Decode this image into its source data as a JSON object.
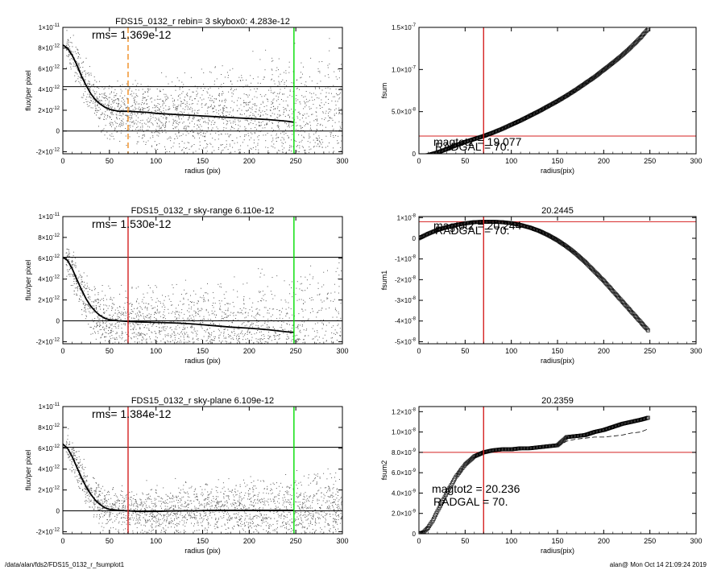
{
  "footer": {
    "path": "/data/alan/fds2/FDS15_0132_r_fsumplot1",
    "stamp": "alan@  Mon Oct 14 21:09:24 2019"
  },
  "chart_data": [
    {
      "id": "p1",
      "type": "scatter",
      "title": "FDS15_0132_r rebin= 3    skybox0:  4.283e-12",
      "xlabel": "radius (pix)",
      "ylabel": "flux/per pixel",
      "xlim": [
        0,
        300
      ],
      "ylim": [
        -2.2e-12,
        1e-11
      ],
      "yscale_label": "12/11",
      "xticks": [
        0,
        50,
        100,
        150,
        200,
        250,
        300
      ],
      "yticks": [
        {
          "v": 1e-11,
          "m": "1×10",
          "e": "-11"
        },
        {
          "v": 8e-12,
          "m": "8×10",
          "e": "-12"
        },
        {
          "v": 6e-12,
          "m": "6×10",
          "e": "-12"
        },
        {
          "v": 4e-12,
          "m": "4×10",
          "e": "-12"
        },
        {
          "v": 2e-12,
          "m": "2×10",
          "e": "-12"
        },
        {
          "v": 0,
          "m": "0",
          "e": ""
        },
        {
          "v": -2e-12,
          "m": "-2×10",
          "e": "-12"
        }
      ],
      "annotations": [
        {
          "text": "rms= 1.369e-12"
        }
      ],
      "hlines": [
        {
          "y": 4.283e-12,
          "color": "#000000"
        },
        {
          "y": 0,
          "color": "#000000"
        }
      ],
      "vlines": [
        {
          "x": 70,
          "color": "#f08c1e",
          "dashed": true
        },
        {
          "x": 248,
          "color": "#00dd00",
          "dashed": false
        }
      ],
      "profile": {
        "x": [
          0,
          5,
          10,
          15,
          20,
          25,
          30,
          35,
          40,
          45,
          50,
          55,
          60,
          70,
          80,
          90,
          100,
          120,
          140,
          160,
          180,
          200,
          220,
          240,
          248
        ],
        "y": [
          8.3e-12,
          8e-12,
          7.3e-12,
          6.4e-12,
          5.3e-12,
          4.4e-12,
          3.6e-12,
          3e-12,
          2.6e-12,
          2.3e-12,
          2.1e-12,
          2e-12,
          1.9e-12,
          1.9e-12,
          1.85e-12,
          1.8e-12,
          1.7e-12,
          1.6e-12,
          1.5e-12,
          1.4e-12,
          1.3e-12,
          1.2e-12,
          1.1e-12,
          9.5e-13,
          8.5e-13
        ]
      },
      "scatter_model": {
        "offset": 0,
        "spread_start": 1.2e-12,
        "spread_end": 5e-12,
        "points": 2200
      }
    },
    {
      "id": "p2",
      "type": "scatter",
      "title": "",
      "xlabel": "radius(pix)",
      "ylabel": "fsum",
      "xlim": [
        0,
        300
      ],
      "ylim": [
        0,
        1.5e-07
      ],
      "xticks": [
        0,
        50,
        100,
        150,
        200,
        250,
        300
      ],
      "yticks": [
        {
          "v": 1.5e-07,
          "m": "1.5×10",
          "e": "-7"
        },
        {
          "v": 1e-07,
          "m": "1.0×10",
          "e": "-7"
        },
        {
          "v": 5e-08,
          "m": "5.0×10",
          "e": "-8"
        },
        {
          "v": 0,
          "m": "0",
          "e": ""
        }
      ],
      "annotations": [
        {
          "text": "magtot2 =  19.077"
        },
        {
          "text": "RADGAL =     70."
        }
      ],
      "hlines": [
        {
          "y": 2.1e-08,
          "color": "#d42020"
        }
      ],
      "vlines": [
        {
          "x": 70,
          "color": "#d42020",
          "dashed": false
        }
      ],
      "series": [
        {
          "name": "",
          "x": [
            0,
            10,
            20,
            30,
            40,
            50,
            60,
            70,
            80,
            90,
            100,
            110,
            120,
            130,
            140,
            150,
            160,
            170,
            180,
            190,
            200,
            210,
            220,
            230,
            240,
            248
          ],
          "y": [
            -3e-09,
            -1.5e-09,
            1.5e-09,
            5.5e-09,
            1e-08,
            1.4e-08,
            1.75e-08,
            2.1e-08,
            2.5e-08,
            2.95e-08,
            3.45e-08,
            3.95e-08,
            4.5e-08,
            5.05e-08,
            5.65e-08,
            6.25e-08,
            6.9e-08,
            7.6e-08,
            8.35e-08,
            9.1e-08,
            9.95e-08,
            1.08e-07,
            1.17e-07,
            1.27e-07,
            1.38e-07,
            1.48e-07
          ]
        }
      ]
    },
    {
      "id": "p3",
      "type": "scatter",
      "title": "FDS15_0132_r sky-range  6.110e-12",
      "xlabel": "radius (pix)",
      "ylabel": "flux/per pixel",
      "xlim": [
        0,
        300
      ],
      "ylim": [
        -2.2e-12,
        1e-11
      ],
      "xticks": [
        0,
        50,
        100,
        150,
        200,
        250,
        300
      ],
      "yticks": [
        {
          "v": 1e-11,
          "m": "1×10",
          "e": "-11"
        },
        {
          "v": 8e-12,
          "m": "8×10",
          "e": "-12"
        },
        {
          "v": 6e-12,
          "m": "6×10",
          "e": "-12"
        },
        {
          "v": 4e-12,
          "m": "4×10",
          "e": "-12"
        },
        {
          "v": 2e-12,
          "m": "2×10",
          "e": "-12"
        },
        {
          "v": 0,
          "m": "0",
          "e": ""
        },
        {
          "v": -2e-12,
          "m": "-2×10",
          "e": "-12"
        }
      ],
      "annotations": [
        {
          "text": "rms= 1.530e-12"
        }
      ],
      "hlines": [
        {
          "y": 6.1e-12,
          "color": "#000000"
        },
        {
          "y": 0,
          "color": "#000000"
        }
      ],
      "vlines": [
        {
          "x": 70,
          "color": "#d42020",
          "dashed": false
        },
        {
          "x": 248,
          "color": "#00dd00",
          "dashed": false
        }
      ],
      "profile": {
        "x": [
          0,
          5,
          10,
          15,
          20,
          25,
          30,
          35,
          40,
          45,
          50,
          60,
          70,
          80,
          100,
          120,
          140,
          160,
          180,
          200,
          220,
          240,
          248
        ],
        "y": [
          6.1e-12,
          5.8e-12,
          5e-12,
          4e-12,
          3e-12,
          2.1e-12,
          1.4e-12,
          9e-13,
          5e-13,
          2.5e-13,
          1e-13,
          0,
          -5e-14,
          -1e-13,
          -1.5e-13,
          -2e-13,
          -3e-13,
          -4.5e-13,
          -6e-13,
          -7e-13,
          -8.5e-13,
          -1.05e-12,
          -1.1e-12
        ]
      },
      "scatter_model": {
        "offset": -1.5e-12,
        "spread_start": 1.3e-12,
        "spread_end": 5.5e-12,
        "points": 2200
      }
    },
    {
      "id": "p4",
      "type": "scatter",
      "title": "20.2445",
      "xlabel": "radius(pix)",
      "ylabel": "fsum1",
      "xlim": [
        0,
        300
      ],
      "ylim": [
        -5.1e-08,
        1.05e-08
      ],
      "xticks": [
        0,
        50,
        100,
        150,
        200,
        250,
        300
      ],
      "yticks": [
        {
          "v": 1e-08,
          "m": "1×10",
          "e": "-8"
        },
        {
          "v": 0,
          "m": "0",
          "e": ""
        },
        {
          "v": -1e-08,
          "m": "-1×10",
          "e": "-8"
        },
        {
          "v": -2e-08,
          "m": "-2×10",
          "e": "-8"
        },
        {
          "v": -3e-08,
          "m": "-3×10",
          "e": "-8"
        },
        {
          "v": -4e-08,
          "m": "-4×10",
          "e": "-8"
        },
        {
          "v": -5e-08,
          "m": "-5×10",
          "e": "-8"
        }
      ],
      "annotations": [
        {
          "text": "magtot2 =  20.244"
        },
        {
          "text": "RADGAL =     70."
        }
      ],
      "hlines": [
        {
          "y": 8e-09,
          "color": "#d42020"
        }
      ],
      "vlines": [
        {
          "x": 70,
          "color": "#d42020",
          "dashed": false
        }
      ],
      "series": [
        {
          "name": "",
          "x": [
            0,
            10,
            20,
            30,
            40,
            50,
            60,
            70,
            80,
            90,
            100,
            110,
            120,
            130,
            140,
            150,
            160,
            170,
            180,
            190,
            200,
            210,
            220,
            230,
            240,
            248
          ],
          "y": [
            0,
            2.2e-09,
            4e-09,
            5.4e-09,
            6.4e-09,
            7.2e-09,
            7.8e-09,
            8e-09,
            8e-09,
            7.8e-09,
            7.3e-09,
            6.4e-09,
            5.2e-09,
            3.6e-09,
            1.5e-09,
            -1e-09,
            -4e-09,
            -7.5e-09,
            -1.15e-08,
            -1.6e-08,
            -2.05e-08,
            -2.55e-08,
            -3.05e-08,
            -3.55e-08,
            -4.05e-08,
            -4.45e-08
          ]
        }
      ]
    },
    {
      "id": "p5",
      "type": "scatter",
      "title": "FDS15_0132_r sky-plane  6.109e-12",
      "xlabel": "radius (pix)",
      "ylabel": "flux/per pixel",
      "xlim": [
        0,
        300
      ],
      "ylim": [
        -2.2e-12,
        1e-11
      ],
      "xticks": [
        0,
        50,
        100,
        150,
        200,
        250,
        300
      ],
      "yticks": [
        {
          "v": 1e-11,
          "m": "1×10",
          "e": "-11"
        },
        {
          "v": 8e-12,
          "m": "8×10",
          "e": "-12"
        },
        {
          "v": 6e-12,
          "m": "6×10",
          "e": "-12"
        },
        {
          "v": 4e-12,
          "m": "4×10",
          "e": "-12"
        },
        {
          "v": 2e-12,
          "m": "2×10",
          "e": "-12"
        },
        {
          "v": 0,
          "m": "0",
          "e": ""
        },
        {
          "v": -2e-12,
          "m": "-2×10",
          "e": "-12"
        }
      ],
      "annotations": [
        {
          "text": "rms= 1.384e-12"
        }
      ],
      "hlines": [
        {
          "y": 6.1e-12,
          "color": "#000000"
        },
        {
          "y": 0,
          "color": "#000000"
        }
      ],
      "vlines": [
        {
          "x": 70,
          "color": "#d42020",
          "dashed": false
        },
        {
          "x": 248,
          "color": "#00dd00",
          "dashed": false
        }
      ],
      "profile": {
        "x": [
          0,
          5,
          10,
          15,
          20,
          25,
          30,
          35,
          40,
          45,
          50,
          60,
          70,
          80,
          100,
          120,
          140,
          160,
          180,
          200,
          220,
          240,
          248
        ],
        "y": [
          6.4e-12,
          6e-12,
          5.2e-12,
          4.2e-12,
          3.2e-12,
          2.3e-12,
          1.6e-12,
          1e-12,
          6e-13,
          3e-13,
          1.5e-13,
          5e-14,
          0,
          -5e-14,
          -5e-14,
          0,
          0,
          5e-14,
          5e-14,
          5e-14,
          5e-14,
          5e-14,
          5e-14
        ]
      },
      "scatter_model": {
        "offset": 0,
        "spread_start": 1.2e-12,
        "spread_end": 2.6e-12,
        "points": 2200
      }
    },
    {
      "id": "p6",
      "type": "scatter",
      "title": "20.2359",
      "xlabel": "radius(pix)",
      "ylabel": "fsum2",
      "xlim": [
        0,
        300
      ],
      "ylim": [
        0,
        1.25e-08
      ],
      "xticks": [
        0,
        50,
        100,
        150,
        200,
        250,
        300
      ],
      "yticks": [
        {
          "v": 1.2e-08,
          "m": "1.2×10",
          "e": "-8"
        },
        {
          "v": 1e-08,
          "m": "1.0×10",
          "e": "-8"
        },
        {
          "v": 8e-09,
          "m": "8.0×10",
          "e": "-9"
        },
        {
          "v": 6e-09,
          "m": "6.0×10",
          "e": "-9"
        },
        {
          "v": 4e-09,
          "m": "4.0×10",
          "e": "-9"
        },
        {
          "v": 2e-09,
          "m": "2.0×10",
          "e": "-9"
        },
        {
          "v": 0,
          "m": "0",
          "e": ""
        }
      ],
      "annotations": [
        {
          "text": "magtot2 =  20.236"
        },
        {
          "text": "RADGAL =     70."
        }
      ],
      "hlines": [
        {
          "y": 8e-09,
          "color": "#d42020"
        }
      ],
      "vlines": [
        {
          "x": 70,
          "color": "#d42020",
          "dashed": false
        }
      ],
      "series": [
        {
          "name": "",
          "x": [
            0,
            5,
            10,
            15,
            20,
            25,
            30,
            35,
            40,
            45,
            50,
            55,
            60,
            65,
            70,
            80,
            90,
            100,
            110,
            120,
            130,
            140,
            150,
            160,
            170,
            180,
            190,
            200,
            210,
            220,
            230,
            240,
            248
          ],
          "y": [
            0,
            1.5e-10,
            6e-10,
            1.3e-09,
            2.2e-09,
            3.1e-09,
            4e-09,
            4.8e-09,
            5.6e-09,
            6.2e-09,
            6.8e-09,
            7.2e-09,
            7.6e-09,
            7.8e-09,
            8e-09,
            8.2e-09,
            8.3e-09,
            8.3e-09,
            8.4e-09,
            8.4e-09,
            8.5e-09,
            8.6e-09,
            8.7e-09,
            9.5e-09,
            9.6e-09,
            9.7e-09,
            1e-08,
            1.02e-08,
            1.05e-08,
            1.08e-08,
            1.1e-08,
            1.12e-08,
            1.14e-08
          ]
        },
        {
          "name": "",
          "dashed": true,
          "x": [
            150,
            160,
            170,
            180,
            190,
            200,
            210,
            220,
            230,
            240,
            248
          ],
          "y": [
            8.6e-09,
            9.1e-09,
            9.3e-09,
            9.4e-09,
            9.5e-09,
            9.5e-09,
            9.6e-09,
            9.7e-09,
            9.9e-09,
            1e-08,
            1.03e-08
          ]
        }
      ]
    }
  ]
}
